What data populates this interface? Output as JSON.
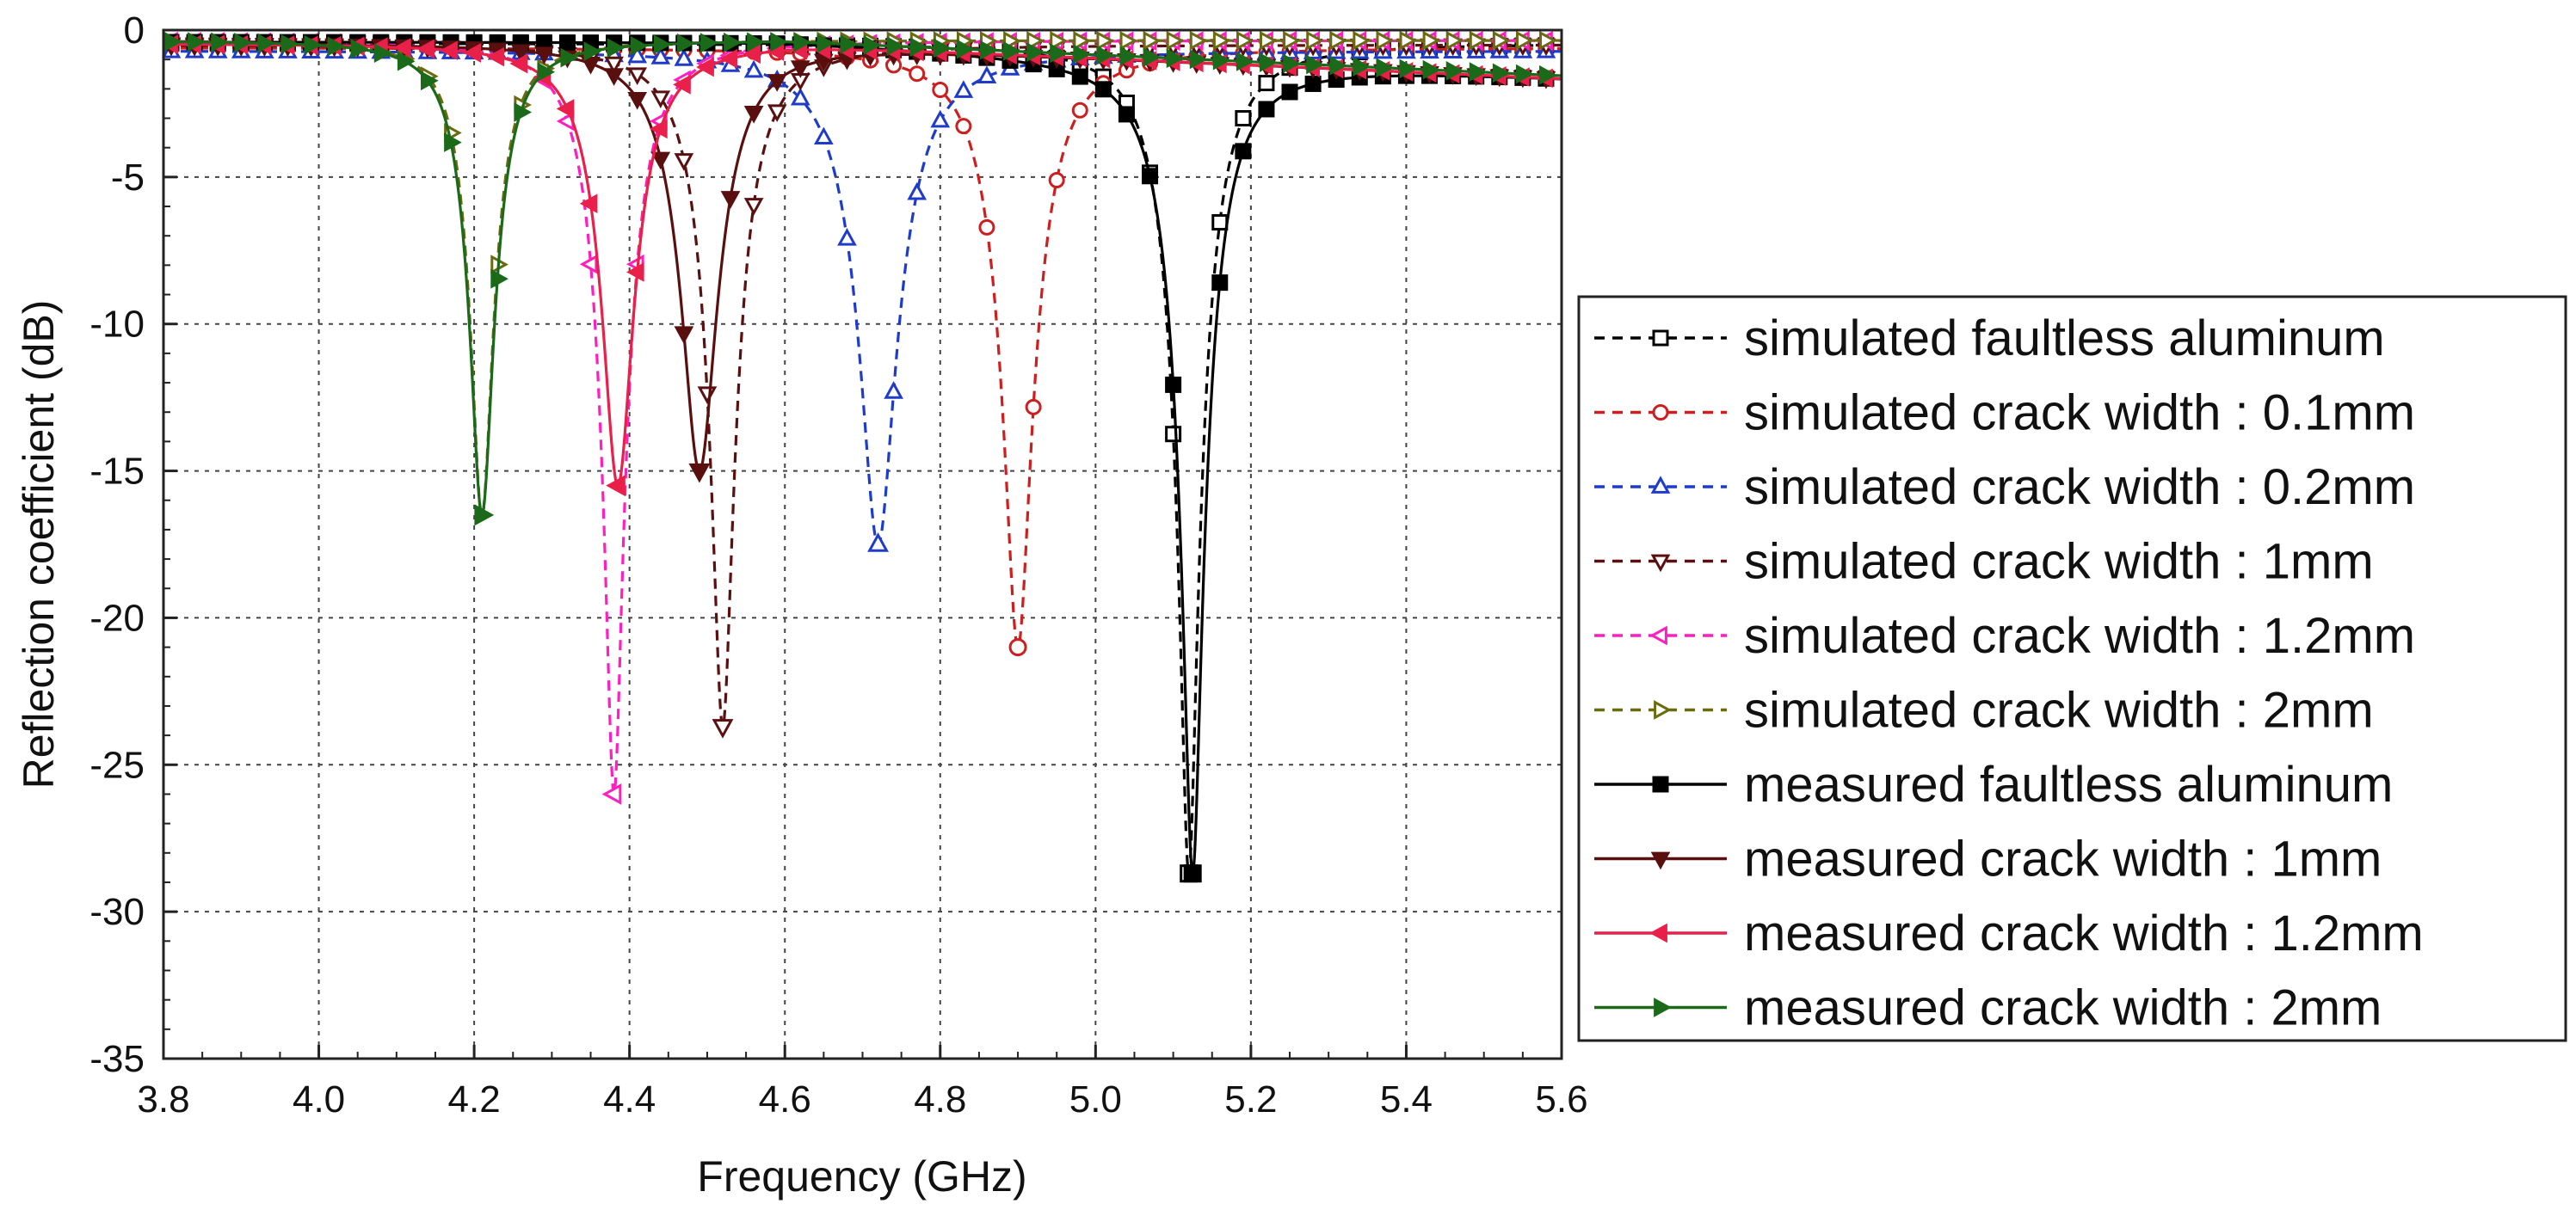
{
  "chart_data": {
    "type": "line",
    "title": "",
    "xlabel": "Frequency (GHz)",
    "ylabel": "Reflection coefficient (dB)",
    "xlim": [
      3.8,
      5.6
    ],
    "ylim": [
      -35,
      0
    ],
    "x_ticks": [
      "3.8",
      "4.0",
      "4.2",
      "4.4",
      "4.6",
      "4.8",
      "5.0",
      "5.2",
      "5.4",
      "5.6"
    ],
    "y_ticks": [
      "0",
      "-5",
      "-10",
      "-15",
      "-20",
      "-25",
      "-30",
      "-35"
    ],
    "grid": true,
    "legend_position": "right",
    "series": [
      {
        "name": "simulated faultless aluminum",
        "kind": "simulated",
        "color": "#000000",
        "marker": "square-open",
        "f0": 5.12,
        "dip": -28.7,
        "width": 0.042,
        "base": -0.45,
        "asym": 0.0
      },
      {
        "name": "simulated crack width : 0.1mm",
        "kind": "simulated",
        "color": "#cc1f1f",
        "marker": "circle-open",
        "f0": 4.9,
        "dip": -21.0,
        "width": 0.045,
        "base": -0.6,
        "asym": 0.0
      },
      {
        "name": "simulated crack width : 0.2mm",
        "kind": "simulated",
        "color": "#1f3cc8",
        "marker": "triangle-up-open",
        "f0": 4.72,
        "dip": -17.5,
        "width": 0.05,
        "base": -0.7,
        "asym": 0.0
      },
      {
        "name": "simulated crack width : 1mm",
        "kind": "simulated",
        "color": "#5a1010",
        "marker": "triangle-down-open",
        "f0": 4.52,
        "dip": -23.7,
        "width": 0.04,
        "base": -0.5,
        "asym": 0.0
      },
      {
        "name": "simulated crack width : 1.2mm",
        "kind": "simulated",
        "color": "#ff1fbf",
        "marker": "triangle-left-open",
        "f0": 4.38,
        "dip": -26.0,
        "width": 0.038,
        "base": -0.35,
        "asym": 0.0
      },
      {
        "name": "simulated crack width : 2mm",
        "kind": "simulated",
        "color": "#6a6a10",
        "marker": "triangle-right-open",
        "f0": 4.21,
        "dip": -16.5,
        "width": 0.03,
        "base": -0.35,
        "asym": 0.0
      },
      {
        "name": "measured faultless aluminum",
        "kind": "measured",
        "color": "#000000",
        "marker": "square",
        "f0": 5.125,
        "dip": -28.7,
        "width": 0.045,
        "base": -0.4,
        "asym": -0.0025
      },
      {
        "name": "measured crack width : 1mm",
        "kind": "measured",
        "color": "#5a0f0f",
        "marker": "triangle-down",
        "f0": 4.49,
        "dip": -15.0,
        "width": 0.045,
        "base": -0.45,
        "asym": -0.0025
      },
      {
        "name": "measured crack width : 1.2mm",
        "kind": "measured",
        "color": "#e8204a",
        "marker": "triangle-left",
        "f0": 4.385,
        "dip": -15.5,
        "width": 0.04,
        "base": -0.45,
        "asym": -0.0025
      },
      {
        "name": "measured crack width : 2mm",
        "kind": "measured",
        "color": "#1a6a1a",
        "marker": "triangle-right",
        "f0": 4.21,
        "dip": -16.5,
        "width": 0.032,
        "base": -0.35,
        "asym": -0.0025
      }
    ]
  }
}
